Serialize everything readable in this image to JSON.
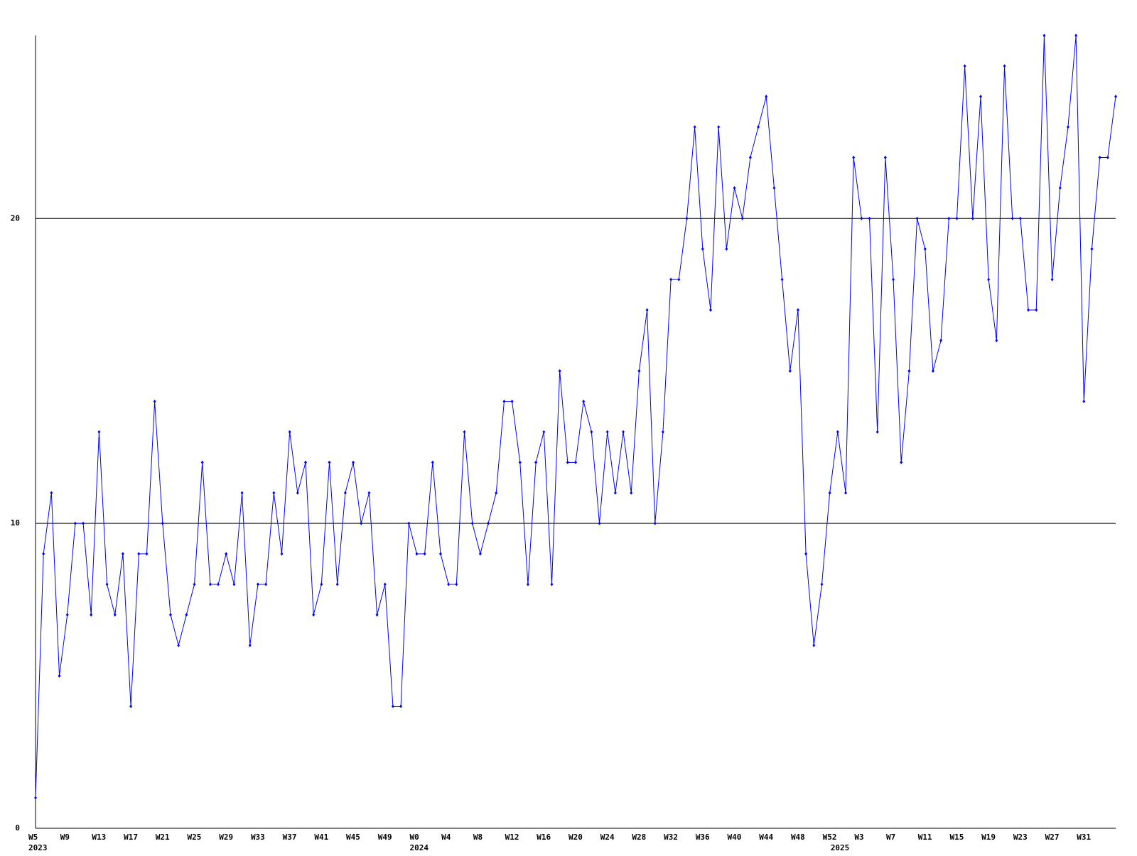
{
  "chart_data": {
    "type": "line",
    "categories": [
      "W5",
      null,
      null,
      null,
      "W9",
      null,
      null,
      null,
      "W13",
      null,
      null,
      null,
      "W17",
      null,
      null,
      null,
      "W21",
      null,
      null,
      null,
      "W25",
      null,
      null,
      null,
      "W29",
      null,
      null,
      null,
      "W33",
      null,
      null,
      null,
      "W37",
      null,
      null,
      null,
      "W41",
      null,
      null,
      null,
      "W45",
      null,
      null,
      null,
      "W49",
      null,
      null,
      null,
      "W0",
      null,
      null,
      null,
      "W4",
      null,
      null,
      null,
      "W8",
      null,
      null,
      null,
      "W12",
      null,
      null,
      null,
      "W16",
      null,
      null,
      null,
      "W20",
      null,
      null,
      null,
      "W24",
      null,
      null,
      null,
      "W28",
      null,
      null,
      null,
      "W32",
      null,
      null,
      null,
      "W36",
      null,
      null,
      null,
      "W40",
      null,
      null,
      null,
      "W44",
      null,
      null,
      null,
      "W48",
      null,
      null,
      null,
      "W52",
      null,
      null,
      null,
      "W3",
      null,
      null,
      null,
      "W7",
      null,
      null,
      null,
      "W11",
      null,
      null,
      null,
      "W15",
      null,
      null,
      null,
      "W19",
      null,
      null,
      null,
      "W23",
      null,
      null,
      null,
      "W27",
      null,
      null,
      null,
      "W31",
      null,
      null,
      null,
      null
    ],
    "category_years": [
      "2023",
      null,
      null,
      null,
      null,
      null,
      null,
      null,
      null,
      null,
      null,
      null,
      null,
      null,
      null,
      null,
      null,
      null,
      null,
      null,
      null,
      null,
      null,
      null,
      null,
      null,
      null,
      null,
      null,
      null,
      null,
      null,
      null,
      null,
      null,
      null,
      null,
      null,
      null,
      null,
      null,
      null,
      null,
      null,
      null,
      null,
      null,
      null,
      "2024",
      null,
      null,
      null,
      null,
      null,
      null,
      null,
      null,
      null,
      null,
      null,
      null,
      null,
      null,
      null,
      null,
      null,
      null,
      null,
      null,
      null,
      null,
      null,
      null,
      null,
      null,
      null,
      null,
      null,
      null,
      null,
      null,
      null,
      null,
      null,
      null,
      null,
      null,
      null,
      null,
      null,
      null,
      null,
      null,
      null,
      null,
      null,
      null,
      null,
      null,
      null,
      null,
      "2025",
      null,
      null,
      null,
      null,
      null,
      null,
      null,
      null,
      null,
      null,
      null,
      null,
      null,
      null,
      null,
      null,
      null,
      null,
      null,
      null,
      null,
      null,
      null,
      null,
      null,
      null,
      null,
      null,
      null,
      null,
      null,
      null,
      null,
      null,
      null
    ],
    "series": [
      {
        "color": "#0000ff",
        "values": [
          1,
          9,
          11,
          5,
          7,
          10,
          10,
          7,
          13,
          8,
          7,
          9,
          4,
          9,
          9,
          14,
          10,
          7,
          6,
          7,
          8,
          12,
          8,
          8,
          9,
          8,
          11,
          6,
          8,
          8,
          11,
          9,
          13,
          11,
          12,
          7,
          8,
          12,
          8,
          11,
          12,
          10,
          11,
          7,
          8,
          4,
          4,
          10,
          9,
          9,
          12,
          9,
          8,
          8,
          13,
          10,
          9,
          10,
          11,
          14,
          14,
          12,
          8,
          12,
          13,
          8,
          15,
          12,
          12,
          14,
          13,
          10,
          13,
          11,
          13,
          11,
          15,
          17,
          10,
          13,
          18,
          18,
          20,
          23,
          19,
          17,
          23,
          19,
          21,
          20,
          22,
          23,
          24,
          21,
          18,
          15,
          17,
          9,
          6,
          8,
          11,
          13,
          11,
          22,
          20,
          20,
          13,
          22,
          18,
          12,
          15,
          20,
          19,
          15,
          16,
          20,
          20,
          25,
          20,
          24,
          18,
          16,
          25,
          20,
          20,
          17,
          17,
          26,
          18,
          21,
          23,
          26,
          14,
          19,
          22,
          22,
          24
        ]
      }
    ],
    "ylim": [
      0,
      26
    ],
    "yticks": [
      0,
      10,
      20
    ],
    "grid": true
  }
}
